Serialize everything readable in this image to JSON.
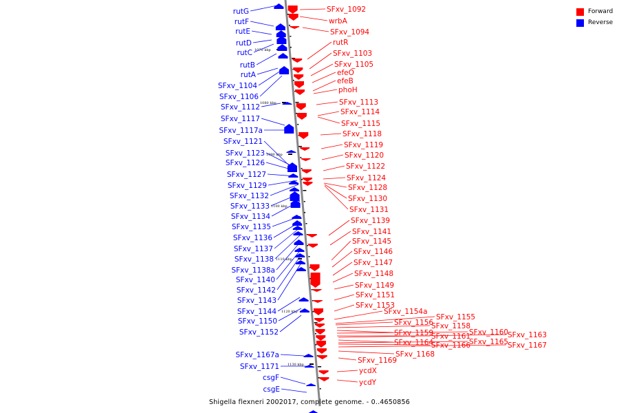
{
  "caption": "Shigella flexneri 2002017, complete genome. - 0..4650856",
  "legend": [
    {
      "label": "Forward",
      "color": "#ff0000"
    },
    {
      "label": "Reverse",
      "color": "#0000ff"
    }
  ],
  "colors": {
    "forward": "#ff0000",
    "reverse": "#0000ff",
    "backbone": "#888888"
  },
  "kbp_marks": [
    "1070 kbp",
    "1080 kbp",
    "1090 kbp",
    "1100 kbp",
    "1110 kbp",
    "1120 kbp",
    "1130 kbp"
  ],
  "reverse_genes": [
    "rutG",
    "rutF",
    "rutE",
    "rutD",
    "rutC",
    "rutB",
    "rutA",
    "SFxv_1104",
    "SFxv_1106",
    "SFxv_1112",
    "SFxv_1117",
    "SFxv_1117a",
    "SFxv_1121",
    "SFxv_1123",
    "SFxv_1126",
    "SFxv_1127",
    "SFxv_1129",
    "SFxv_1132",
    "SFxv_1133",
    "SFxv_1134",
    "SFxv_1135",
    "SFxv_1136",
    "SFxv_1137",
    "SFxv_1138",
    "SFxv_1138a",
    "SFxv_1140",
    "SFxv_1142",
    "SFxv_1143",
    "SFxv_1144",
    "SFxv_1150",
    "SFxv_1152",
    "SFxv_1167a",
    "SFxv_1171",
    "csgF",
    "csgE"
  ],
  "forward_genes": [
    "SFxv_1092",
    "wrbA",
    "SFxv_1094",
    "rutR",
    "SFxv_1103",
    "SFxv_1105",
    "efeO",
    "efeB",
    "phoH",
    "SFxv_1113",
    "SFxv_1114",
    "SFxv_1115",
    "SFxv_1118",
    "SFxv_1119",
    "SFxv_1120",
    "SFxv_1122",
    "SFxv_1124",
    "SFxv_1128",
    "SFxv_1130",
    "SFxv_1131",
    "SFxv_1139",
    "SFxv_1141",
    "SFxv_1145",
    "SFxv_1146",
    "SFxv_1147",
    "SFxv_1148",
    "SFxv_1149",
    "SFxv_1151",
    "SFxv_1153",
    "SFxv_1154a",
    "SFxv_1155",
    "SFxv_1156",
    "SFxv_1158",
    "SFxv_1159",
    "SFxv_1160",
    "SFxv_1161",
    "SFxv_1163",
    "SFxv_1164",
    "SFxv_1165",
    "SFxv_1166",
    "SFxv_1167",
    "SFxv_1168",
    "SFxv_1169",
    "ycdX",
    "ycdY"
  ]
}
